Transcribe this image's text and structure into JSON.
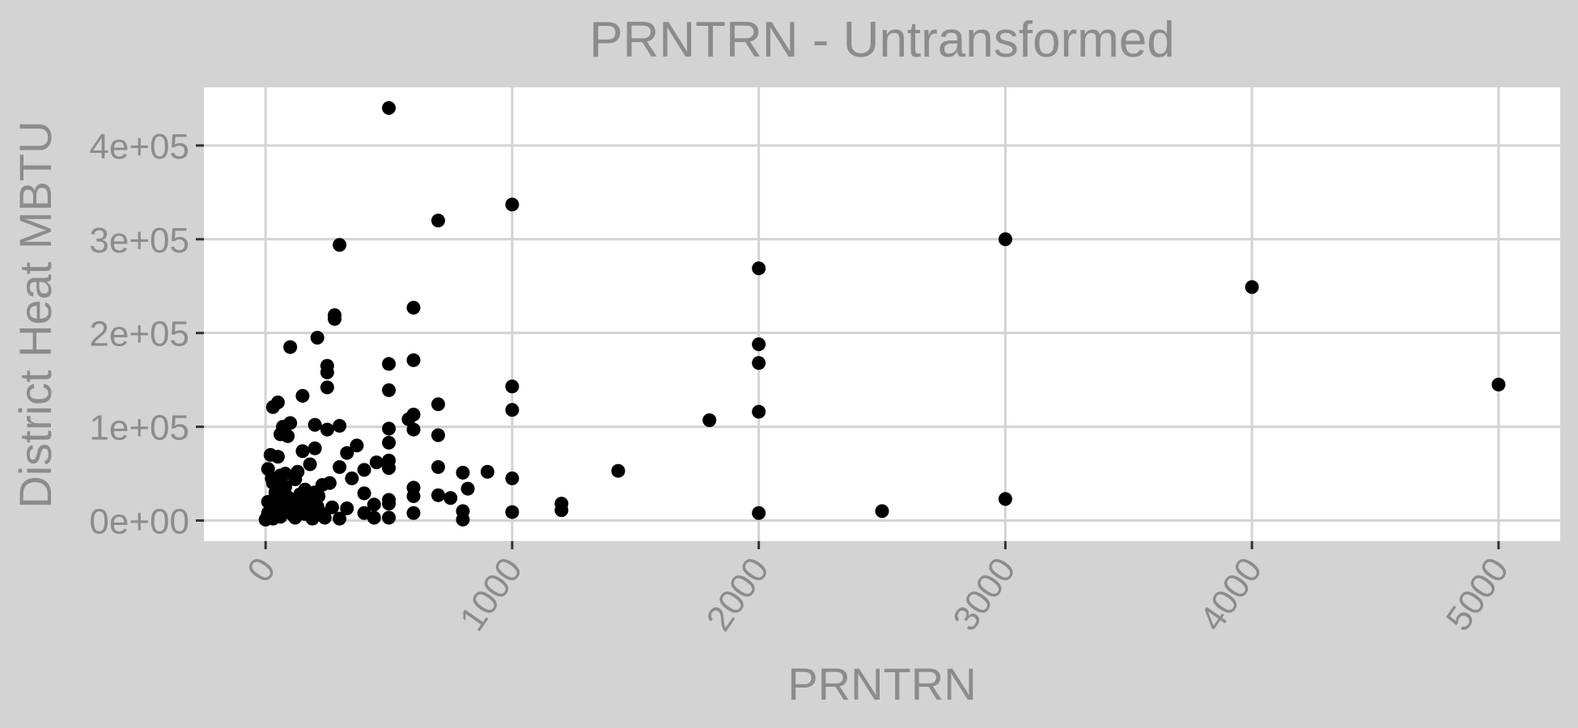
{
  "chart_data": {
    "type": "scatter",
    "title": "PRNTRN - Untransformed",
    "xlabel": "PRNTRN",
    "ylabel": "District Heat MBTU",
    "xlim": [
      -250,
      5250
    ],
    "ylim": [
      -22000,
      462000
    ],
    "x_ticks": [
      0,
      1000,
      2000,
      3000,
      4000,
      5000
    ],
    "x_tick_labels": [
      "0",
      "1000",
      "2000",
      "3000",
      "4000",
      "5000"
    ],
    "y_ticks": [
      0,
      100000,
      200000,
      300000,
      400000
    ],
    "y_tick_labels": [
      "0e+00",
      "1e+05",
      "2e+05",
      "3e+05",
      "4e+05"
    ],
    "grid": true,
    "colors": {
      "background": "#d3d3d3",
      "panel": "#ffffff",
      "grid": "#d3d3d3",
      "point": "#000000",
      "text": "#8c8c8c",
      "tick": "#333333"
    },
    "series": [
      {
        "points": [
          [
            500,
            440000
          ],
          [
            1000,
            337000
          ],
          [
            700,
            320000
          ],
          [
            300,
            294000
          ],
          [
            3000,
            300000
          ],
          [
            2000,
            269000
          ],
          [
            4000,
            249000
          ],
          [
            600,
            227000
          ],
          [
            280,
            219000
          ],
          [
            280,
            215000
          ],
          [
            210,
            195000
          ],
          [
            100,
            185000
          ],
          [
            2000,
            188000
          ],
          [
            600,
            171000
          ],
          [
            500,
            167000
          ],
          [
            2000,
            168000
          ],
          [
            250,
            165000
          ],
          [
            250,
            158000
          ],
          [
            250,
            142000
          ],
          [
            500,
            139000
          ],
          [
            1000,
            143000
          ],
          [
            5000,
            145000
          ],
          [
            150,
            133000
          ],
          [
            700,
            124000
          ],
          [
            50,
            126000
          ],
          [
            30,
            121000
          ],
          [
            1000,
            118000
          ],
          [
            2000,
            116000
          ],
          [
            600,
            113000
          ],
          [
            580,
            108000
          ],
          [
            1800,
            107000
          ],
          [
            100,
            104000
          ],
          [
            200,
            102000
          ],
          [
            300,
            101000
          ],
          [
            70,
            100000
          ],
          [
            500,
            98000
          ],
          [
            250,
            97000
          ],
          [
            600,
            97000
          ],
          [
            700,
            91000
          ],
          [
            60,
            92000
          ],
          [
            90,
            90000
          ],
          [
            500,
            83000
          ],
          [
            370,
            80000
          ],
          [
            200,
            77000
          ],
          [
            150,
            74000
          ],
          [
            330,
            72000
          ],
          [
            20,
            70000
          ],
          [
            50,
            68000
          ],
          [
            450,
            62000
          ],
          [
            500,
            64000
          ],
          [
            500,
            56000
          ],
          [
            700,
            57000
          ],
          [
            300,
            57000
          ],
          [
            10,
            55000
          ],
          [
            400,
            54000
          ],
          [
            900,
            52000
          ],
          [
            1430,
            53000
          ],
          [
            800,
            51000
          ],
          [
            350,
            45000
          ],
          [
            1000,
            45000
          ],
          [
            60,
            48000
          ],
          [
            120,
            44000
          ],
          [
            260,
            40000
          ],
          [
            600,
            35000
          ],
          [
            820,
            34000
          ],
          [
            30,
            40000
          ],
          [
            80,
            36000
          ],
          [
            160,
            33000
          ],
          [
            400,
            29000
          ],
          [
            700,
            27000
          ],
          [
            750,
            24000
          ],
          [
            600,
            26000
          ],
          [
            500,
            22000
          ],
          [
            1200,
            18000
          ],
          [
            3000,
            23000
          ],
          [
            500,
            18000
          ],
          [
            440,
            17000
          ],
          [
            40,
            26000
          ],
          [
            100,
            22000
          ],
          [
            180,
            20000
          ],
          [
            210,
            15000
          ],
          [
            330,
            13000
          ],
          [
            1200,
            11000
          ],
          [
            800,
            10000
          ],
          [
            1000,
            9000
          ],
          [
            2500,
            10000
          ],
          [
            2000,
            8000
          ],
          [
            600,
            8000
          ],
          [
            400,
            8000
          ],
          [
            150,
            10000
          ],
          [
            50,
            12000
          ],
          [
            10,
            8000
          ],
          [
            5,
            3000
          ],
          [
            15,
            5000
          ],
          [
            0,
            1000
          ],
          [
            30,
            2000
          ],
          [
            60,
            4000
          ],
          [
            120,
            3000
          ],
          [
            190,
            2000
          ],
          [
            240,
            3000
          ],
          [
            300,
            2000
          ],
          [
            440,
            3000
          ],
          [
            500,
            3000
          ],
          [
            800,
            1000
          ],
          [
            20,
            15000
          ],
          [
            70,
            18000
          ],
          [
            90,
            25000
          ],
          [
            140,
            28000
          ],
          [
            200,
            30000
          ],
          [
            40,
            30000
          ],
          [
            10,
            20000
          ],
          [
            110,
            6000
          ],
          [
            160,
            7000
          ],
          [
            220,
            9000
          ],
          [
            270,
            14000
          ],
          [
            80,
            50000
          ],
          [
            130,
            52000
          ],
          [
            180,
            60000
          ],
          [
            230,
            38000
          ],
          [
            25,
            45000
          ],
          [
            35,
            10000
          ],
          [
            55,
            22000
          ],
          [
            75,
            16000
          ],
          [
            95,
            12000
          ],
          [
            115,
            18000
          ],
          [
            135,
            24000
          ],
          [
            155,
            14000
          ],
          [
            175,
            8000
          ],
          [
            195,
            20000
          ],
          [
            215,
            26000
          ]
        ]
      }
    ]
  }
}
